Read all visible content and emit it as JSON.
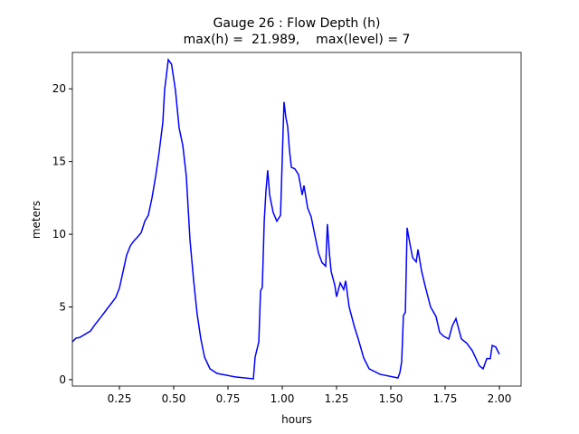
{
  "chart_data": {
    "type": "line",
    "title": [
      "Gauge 26 : Flow Depth (h)",
      "max(h) =  21.989,    max(level) = 7"
    ],
    "x_label": "hours",
    "y_label": "meters",
    "xlim": [
      0.0333,
      2.1
    ],
    "ylim": [
      -0.44,
      22.5
    ],
    "xticks": [
      0.25,
      {
        "value": 0.5,
        "label": "0.50"
      },
      0.75,
      {
        "value": 1.0,
        "label": "1.00"
      },
      1.25,
      {
        "value": 1.5,
        "label": "1.50"
      },
      1.75,
      {
        "value": 2.0,
        "label": "2.00"
      }
    ],
    "yticks": [
      0,
      5,
      10,
      15,
      20
    ],
    "series": [
      {
        "color": "#0000ff",
        "x": [
          0.033,
          0.05,
          0.067,
          0.117,
          0.133,
          0.167,
          0.2,
          0.233,
          0.25,
          0.267,
          0.283,
          0.3,
          0.317,
          0.333,
          0.35,
          0.367,
          0.383,
          0.4,
          0.417,
          0.433,
          0.45,
          0.458,
          0.475,
          0.49,
          0.508,
          0.525,
          0.542,
          0.558,
          0.575,
          0.592,
          0.608,
          0.625,
          0.642,
          0.667,
          0.7,
          0.783,
          0.867,
          0.875,
          0.892,
          0.9,
          0.908,
          0.917,
          0.925,
          0.933,
          0.942,
          0.958,
          0.975,
          0.992,
          1.0,
          1.008,
          1.017,
          1.025,
          1.033,
          1.042,
          1.058,
          1.075,
          1.092,
          1.1,
          1.117,
          1.133,
          1.15,
          1.167,
          1.183,
          1.2,
          1.208,
          1.217,
          1.225,
          1.242,
          1.25,
          1.267,
          1.283,
          1.292,
          1.308,
          1.333,
          1.35,
          1.375,
          1.4,
          1.45,
          1.533,
          1.542,
          1.55,
          1.558,
          1.567,
          1.575,
          1.583,
          1.6,
          1.617,
          1.625,
          1.642,
          1.658,
          1.683,
          1.708,
          1.725,
          1.742,
          1.767,
          1.783,
          1.8,
          1.825,
          1.85,
          1.875,
          1.908,
          1.925,
          1.942,
          1.958,
          1.967,
          1.983,
          2.0
        ],
        "values": [
          2.6,
          2.86,
          2.9,
          3.35,
          3.7,
          4.35,
          5.0,
          5.65,
          6.3,
          7.45,
          8.55,
          9.2,
          9.55,
          9.8,
          10.1,
          10.9,
          11.3,
          12.5,
          14.0,
          15.65,
          17.7,
          19.9,
          22.0,
          21.7,
          19.9,
          17.3,
          16.1,
          14.0,
          9.6,
          6.8,
          4.5,
          2.8,
          1.55,
          0.75,
          0.43,
          0.19,
          0.06,
          1.55,
          2.6,
          6.1,
          6.35,
          10.9,
          13.0,
          14.4,
          12.7,
          11.5,
          10.9,
          11.3,
          15.2,
          19.1,
          18.0,
          17.4,
          15.8,
          14.6,
          14.5,
          14.1,
          12.7,
          13.35,
          11.8,
          11.2,
          9.95,
          8.7,
          8.05,
          7.8,
          10.7,
          8.7,
          7.45,
          6.5,
          5.7,
          6.65,
          6.2,
          6.8,
          5.0,
          3.6,
          2.8,
          1.5,
          0.75,
          0.37,
          0.12,
          0.5,
          1.25,
          4.4,
          4.65,
          10.45,
          9.75,
          8.4,
          8.1,
          8.95,
          7.45,
          6.45,
          5.0,
          4.35,
          3.25,
          3.0,
          2.8,
          3.7,
          4.2,
          2.8,
          2.5,
          2.0,
          0.95,
          0.75,
          1.45,
          1.45,
          2.35,
          2.25,
          1.75
        ]
      }
    ]
  }
}
